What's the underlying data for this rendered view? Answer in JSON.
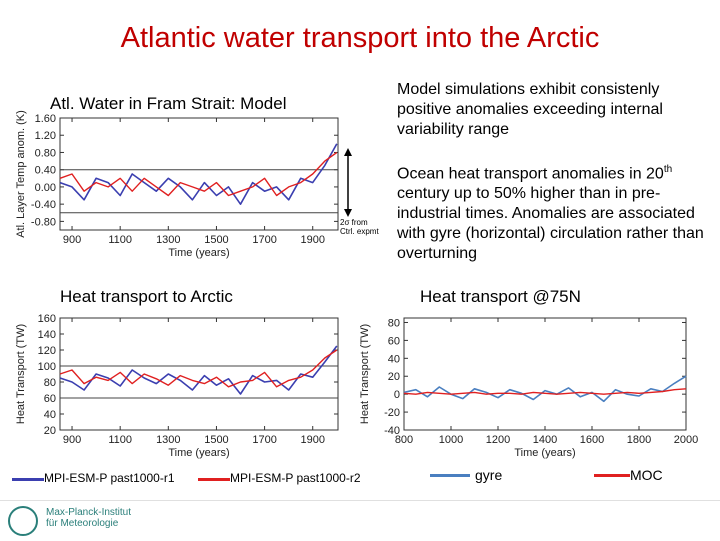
{
  "title": "Atlantic water transport into the Arctic",
  "notes": {
    "model_simulations": "Model simulations exhibit  consistenly positive anomalies exceeding  internal variability range",
    "ocean_heat_1": "Ocean heat transport anomalies in 20",
    "ocean_heat_sup": "th",
    "ocean_heat_2": "century up to 50% higher than in pre-industrial times. Anomalies are associated with gyre (horizontal) circulation rather than overturning"
  },
  "annotation": {
    "two_sd": "2σ from Ctrl. expmt"
  },
  "legend": {
    "r1": "MPI-ESM-P past1000-r1",
    "r2": "MPI-ESM-P past1000-r2",
    "gyre": "gyre",
    "moc": "MOC",
    "colors": {
      "r1": "#3b3fb0",
      "r2": "#e02020",
      "gyre": "#4a7fc0",
      "moc": "#e02020"
    }
  },
  "logo": {
    "line1": "Max-Planck-Institut",
    "line2": "für Meteorologie"
  },
  "chart_data": [
    {
      "type": "line",
      "title": "Atl. Water in Fram Strait: Model",
      "xlabel": "Time (years)",
      "ylabel": "Atl. Layer Temp anom. (K)",
      "xlim": [
        850,
        2005
      ],
      "ylim": [
        -1.0,
        1.6
      ],
      "xticks": [
        900,
        1100,
        1300,
        1500,
        1700,
        1900
      ],
      "yticks": [
        1.6,
        1.2,
        0.8,
        0.4,
        0.0,
        -0.4,
        -0.8
      ],
      "ytick_labels": [
        "1.60",
        "1.20",
        "0.80",
        "0.40",
        "0.00",
        "-0.40",
        "-0.80"
      ],
      "hlines": [
        0.4,
        -0.6
      ],
      "x": [
        850,
        900,
        950,
        1000,
        1050,
        1100,
        1150,
        1200,
        1250,
        1300,
        1350,
        1400,
        1450,
        1500,
        1550,
        1600,
        1650,
        1700,
        1750,
        1800,
        1850,
        1900,
        1950,
        2000
      ],
      "series": [
        {
          "name": "MPI-ESM-P past1000-r1",
          "values": [
            0.1,
            0.0,
            -0.3,
            0.2,
            0.1,
            -0.2,
            0.3,
            0.1,
            -0.1,
            0.2,
            0.0,
            -0.3,
            0.1,
            -0.2,
            0.0,
            -0.4,
            0.1,
            -0.1,
            0.0,
            -0.3,
            0.2,
            0.1,
            0.5,
            1.0
          ]
        },
        {
          "name": "MPI-ESM-P past1000-r2",
          "values": [
            0.2,
            0.3,
            -0.1,
            0.1,
            0.0,
            0.2,
            -0.1,
            0.2,
            0.0,
            -0.2,
            0.1,
            0.0,
            -0.1,
            0.1,
            -0.2,
            -0.1,
            0.0,
            0.2,
            -0.2,
            0.0,
            0.1,
            0.3,
            0.6,
            0.8
          ]
        }
      ]
    },
    {
      "type": "line",
      "title": "Heat transport to Arctic",
      "xlabel": "Time (years)",
      "ylabel": "Heat Transport (TW)",
      "xlim": [
        850,
        2005
      ],
      "ylim": [
        20,
        160
      ],
      "xticks": [
        900,
        1100,
        1300,
        1500,
        1700,
        1900
      ],
      "yticks": [
        160,
        140,
        120,
        100,
        80,
        60,
        40,
        20
      ],
      "ytick_labels": [
        "160",
        "140",
        "120",
        "100",
        "80",
        "60",
        "40",
        "20"
      ],
      "hlines": [
        100,
        60
      ],
      "x": [
        850,
        900,
        950,
        1000,
        1050,
        1100,
        1150,
        1200,
        1250,
        1300,
        1350,
        1400,
        1450,
        1500,
        1550,
        1600,
        1650,
        1700,
        1750,
        1800,
        1850,
        1900,
        1950,
        2000
      ],
      "series": [
        {
          "name": "MPI-ESM-P past1000-r1",
          "values": [
            85,
            80,
            70,
            90,
            85,
            75,
            95,
            85,
            78,
            90,
            82,
            70,
            88,
            76,
            84,
            65,
            88,
            80,
            82,
            70,
            90,
            86,
            105,
            125
          ]
        },
        {
          "name": "MPI-ESM-P past1000-r2",
          "values": [
            90,
            95,
            78,
            86,
            82,
            92,
            78,
            90,
            84,
            76,
            88,
            82,
            78,
            86,
            74,
            80,
            82,
            92,
            74,
            82,
            86,
            95,
            110,
            120
          ]
        }
      ]
    },
    {
      "type": "line",
      "title": "Heat transport @75N",
      "xlabel": "Time (years)",
      "ylabel": "Heat Transport (TW)",
      "xlim": [
        800,
        2000
      ],
      "ylim": [
        -40,
        85
      ],
      "xticks": [
        800,
        1000,
        1200,
        1400,
        1600,
        1800,
        2000
      ],
      "yticks": [
        80,
        60,
        40,
        20,
        0,
        -20,
        -40
      ],
      "ytick_labels": [
        "80",
        "60",
        "40",
        "20",
        "0",
        "-20",
        "-40"
      ],
      "x": [
        800,
        850,
        900,
        950,
        1000,
        1050,
        1100,
        1150,
        1200,
        1250,
        1300,
        1350,
        1400,
        1450,
        1500,
        1550,
        1600,
        1650,
        1700,
        1750,
        1800,
        1850,
        1900,
        1950,
        2000
      ],
      "series": [
        {
          "name": "gyre",
          "values": [
            2,
            5,
            -3,
            8,
            0,
            -5,
            6,
            2,
            -4,
            5,
            1,
            -6,
            4,
            0,
            7,
            -3,
            2,
            -8,
            5,
            0,
            -2,
            6,
            3,
            12,
            20
          ]
        },
        {
          "name": "MOC",
          "values": [
            1,
            0,
            2,
            1,
            0,
            1,
            2,
            0,
            1,
            1,
            0,
            2,
            1,
            0,
            1,
            2,
            1,
            0,
            1,
            2,
            1,
            2,
            3,
            5,
            6
          ]
        }
      ]
    }
  ]
}
